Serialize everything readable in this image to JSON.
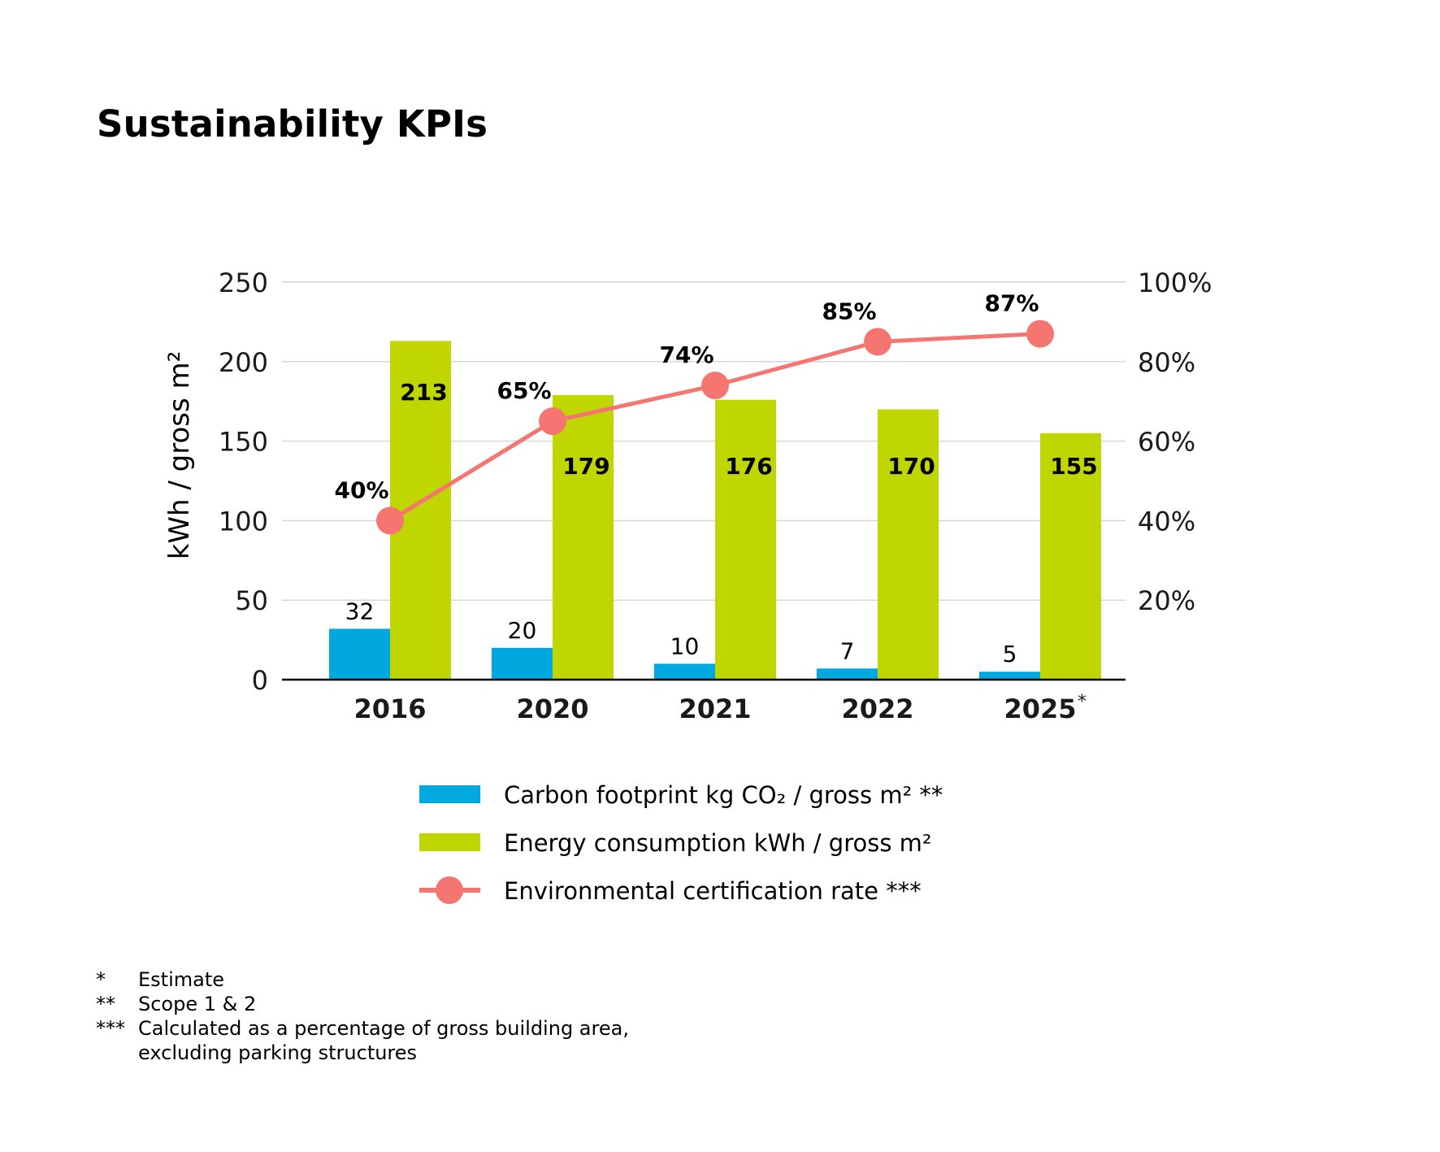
{
  "title": "Sustainability KPIs",
  "colors": {
    "carbon": "#00a8e0",
    "energy": "#bfd600",
    "cert": "#f57571",
    "grid": "#d6d6d6",
    "axis": "#000000"
  },
  "chart_data": {
    "type": "bar",
    "title": "Sustainability KPIs",
    "categories": [
      "2016",
      "2020",
      "2021",
      "2022",
      "2025"
    ],
    "category_marks": [
      "",
      "",
      "",
      "",
      "*"
    ],
    "ylabel": "kWh / gross m²",
    "ylim": [
      0,
      250
    ],
    "yticks": [
      "0",
      "50",
      "100",
      "150",
      "200",
      "250"
    ],
    "y2lim": [
      0,
      100
    ],
    "y2ticks": [
      "20%",
      "40%",
      "60%",
      "80%",
      "100%"
    ],
    "grid": true,
    "legend_position": "bottom",
    "series": [
      {
        "name": "Carbon footprint kg CO₂ / gross m² **",
        "type": "bar",
        "axis": "left",
        "values": [
          32,
          20,
          10,
          7,
          5
        ],
        "labels": [
          "32",
          "20",
          "10",
          "7",
          "5"
        ]
      },
      {
        "name": "Energy consumption kWh / gross m²",
        "type": "bar",
        "axis": "left",
        "values": [
          213,
          179,
          176,
          170,
          155
        ],
        "labels": [
          "213",
          "179",
          "176",
          "170",
          "155"
        ]
      },
      {
        "name": "Environmental certification rate ***",
        "type": "line",
        "axis": "right",
        "values": [
          40,
          65,
          74,
          85,
          87
        ],
        "labels": [
          "40%",
          "65%",
          "74%",
          "85%",
          "87%"
        ]
      }
    ]
  },
  "footnotes": [
    {
      "mark": "*",
      "text": "Estimate"
    },
    {
      "mark": "**",
      "text": "Scope 1 & 2"
    },
    {
      "mark": "***",
      "text": "Calculated as a percentage of gross building area,\nexcluding parking structures"
    }
  ]
}
